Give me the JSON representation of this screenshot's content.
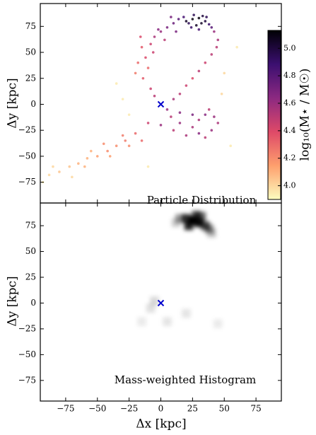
{
  "chart_data": [
    {
      "type": "scatter",
      "annotation": "Particle Distribution",
      "ylabel": "Δy [kpc]",
      "xlim": [
        -95,
        95
      ],
      "ylim": [
        -95,
        97
      ],
      "xticks": [
        -75,
        -50,
        -25,
        0,
        25,
        50,
        75
      ],
      "yticks": [
        {
          "value": -75,
          "label": "−75"
        },
        {
          "value": -50,
          "label": "−50"
        },
        {
          "value": -25,
          "label": "−25"
        },
        0,
        25,
        50,
        75
      ],
      "x": [
        20,
        25,
        30,
        35,
        28,
        22,
        32,
        38,
        26,
        33,
        18,
        40,
        24,
        30,
        36,
        -5,
        0,
        5,
        10,
        14,
        -8,
        -2,
        8,
        3,
        12,
        42,
        45,
        44,
        40,
        35,
        30,
        25,
        20,
        15,
        10,
        -15,
        -12,
        -10,
        -14,
        -8,
        -5,
        -18,
        -20,
        -6,
        -16,
        5,
        15,
        25,
        35,
        42,
        45,
        40,
        30,
        20,
        10,
        0,
        -10,
        35,
        25,
        15,
        38,
        30,
        8,
        -20,
        -28,
        -35,
        -42,
        -50,
        -58,
        -65,
        -72,
        -80,
        -88,
        -93,
        -60,
        -45,
        -30,
        -70,
        -85,
        -55,
        -40,
        -25,
        -15,
        -25,
        -30,
        50,
        55,
        -10,
        48,
        -35,
        60
      ],
      "y": [
        80,
        82,
        83,
        80,
        76,
        78,
        78,
        77,
        86,
        85,
        84,
        74,
        74,
        72,
        84,
        65,
        70,
        74,
        78,
        82,
        58,
        72,
        84,
        62,
        70,
        70,
        62,
        55,
        48,
        40,
        32,
        25,
        18,
        10,
        5,
        55,
        45,
        35,
        25,
        15,
        8,
        40,
        30,
        50,
        65,
        -5,
        -8,
        -10,
        -10,
        -12,
        -18,
        -25,
        -28,
        -30,
        -25,
        -20,
        -18,
        -32,
        -22,
        -18,
        -5,
        -15,
        -12,
        -28,
        -35,
        -40,
        -45,
        -50,
        -52,
        -57,
        -60,
        -65,
        -68,
        -75,
        -60,
        -38,
        -30,
        -70,
        -60,
        -45,
        -50,
        -40,
        -35,
        -10,
        5,
        30,
        -40,
        -60,
        10,
        20,
        55
      ],
      "c": [
        5.05,
        5.1,
        5.1,
        5.0,
        5.05,
        4.95,
        5.05,
        4.9,
        4.95,
        5.0,
        4.85,
        4.8,
        4.9,
        4.85,
        4.95,
        4.55,
        4.6,
        4.7,
        4.75,
        4.8,
        4.45,
        4.65,
        4.7,
        4.5,
        4.7,
        4.6,
        4.55,
        4.5,
        4.5,
        4.45,
        4.5,
        4.4,
        4.45,
        4.5,
        4.55,
        4.35,
        4.4,
        4.3,
        4.35,
        4.45,
        4.5,
        4.3,
        4.25,
        4.45,
        4.4,
        4.6,
        4.65,
        4.7,
        4.65,
        4.6,
        4.55,
        4.6,
        4.65,
        4.55,
        4.5,
        4.6,
        4.45,
        4.5,
        4.55,
        4.6,
        4.5,
        4.55,
        4.5,
        4.3,
        4.25,
        4.2,
        4.2,
        4.15,
        4.1,
        4.1,
        4.05,
        4.05,
        4.0,
        3.95,
        4.1,
        4.2,
        4.25,
        4.0,
        4.0,
        4.1,
        4.15,
        4.2,
        4.3,
        3.95,
        3.95,
        4.0,
        3.95,
        3.95,
        4.0,
        3.95,
        3.95
      ],
      "colorbar": {
        "label": "log₁₀(M⋆ / M☉)",
        "clim": [
          3.9,
          5.13
        ],
        "colors": [
          "#fcfdbf",
          "#fe9f6d",
          "#de4968",
          "#8c2981",
          "#3b0f70",
          "#000004"
        ],
        "ticks": [
          {
            "value": 4,
            "label": "4.0"
          },
          {
            "value": 4.2,
            "label": "4.2"
          },
          {
            "value": 4.4,
            "label": "4.4"
          },
          {
            "value": 4.6,
            "label": "4.6"
          },
          {
            "value": 4.8,
            "label": "4.8"
          },
          {
            "value": 5,
            "label": "5.0"
          }
        ]
      },
      "marker": {
        "x": 0,
        "y": 0,
        "color": "#0000cc"
      }
    },
    {
      "type": "histogram2d",
      "annotation": "Mass-weighted Histogram",
      "xlabel": "Δx [kpc]",
      "ylabel": "Δy [kpc]",
      "xlim": [
        -95,
        95
      ],
      "ylim": [
        -95,
        97
      ],
      "xticks": [
        {
          "value": -75,
          "label": "−75"
        },
        {
          "value": -50,
          "label": "−50"
        },
        {
          "value": -25,
          "label": "−25"
        },
        0,
        25,
        50,
        75
      ],
      "yticks": [
        {
          "value": -75,
          "label": "−75"
        },
        {
          "value": -50,
          "label": "−50"
        },
        {
          "value": -25,
          "label": "−25"
        },
        0,
        25,
        50,
        75
      ],
      "x": [
        25,
        30,
        20,
        35,
        28,
        15,
        38,
        22,
        32,
        12,
        40,
        -5,
        -8,
        20,
        5,
        45,
        -15
      ],
      "y": [
        80,
        78,
        82,
        75,
        85,
        82,
        72,
        75,
        84,
        78,
        68,
        2,
        -5,
        -10,
        -18,
        -20,
        -18
      ],
      "values": [
        1,
        0.95,
        0.8,
        0.7,
        0.75,
        0.4,
        0.45,
        0.85,
        0.6,
        0.2,
        0.25,
        0.15,
        0.12,
        0.1,
        0.1,
        0.08,
        0.08
      ],
      "color": "#000000",
      "marker": {
        "x": 0,
        "y": 0,
        "color": "#0000cc"
      }
    }
  ]
}
